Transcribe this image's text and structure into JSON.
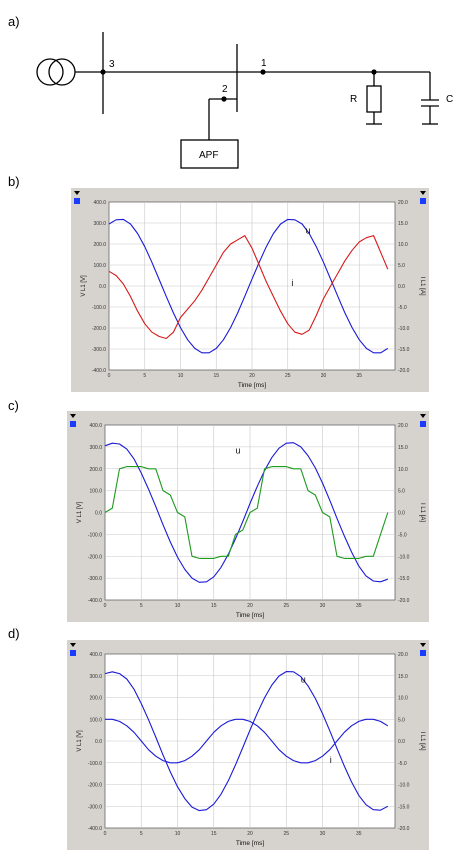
{
  "panels": {
    "a": "a)",
    "b": "b)",
    "c": "c)",
    "d": "d)"
  },
  "schematic": {
    "node_3": "3",
    "node_2": "2",
    "node_1": "1",
    "r_label": "R",
    "c_label": "C",
    "apf_label": "APF"
  },
  "colors": {
    "voltage": "#1a1ad6",
    "current_b": "#d61a1a",
    "current_c": "#1e9a1e",
    "current_d": "#1a1ad6",
    "plot_bg": "#ffffff",
    "frame_bg": "#d6d3ce",
    "marker": "#1a3cff"
  },
  "chart_data": [
    {
      "type": "line",
      "panel": "b",
      "xlabel": "Time [ms]",
      "ylabel_left": "V L1 [V]",
      "ylabel_right": "I L1 [A]",
      "xlim": [
        0,
        40
      ],
      "ylim_left": [
        -400,
        400
      ],
      "ylim_right": [
        -20,
        20
      ],
      "x_ticks": [
        "0",
        "5",
        "10",
        "15",
        "20",
        "25",
        "30",
        "35"
      ],
      "y_left_ticks": [
        "400.0",
        "300.0",
        "200.0",
        "100.0",
        "0.0",
        "-100.0",
        "-200.0",
        "-300.0",
        "-400.0"
      ],
      "y_right_ticks": [
        "20.0",
        "15.0",
        "10.0",
        "5.0",
        "0.0",
        "-5.0",
        "-10.0",
        "-15.0",
        "-20.0"
      ],
      "series": [
        {
          "name": "u",
          "axis": "left",
          "x": [
            0,
            1,
            2,
            3,
            4,
            5,
            6,
            7,
            8,
            9,
            10,
            11,
            12,
            13,
            14,
            15,
            16,
            17,
            18,
            19,
            20,
            21,
            22,
            23,
            24,
            25,
            26,
            27,
            28,
            29,
            30,
            31,
            32,
            33,
            34,
            35,
            36,
            37,
            38,
            39
          ],
          "values": [
            295,
            315,
            317,
            295,
            250,
            187,
            113,
            33,
            -49,
            -128,
            -198,
            -256,
            -297,
            -318,
            -318,
            -297,
            -256,
            -198,
            -128,
            -49,
            33,
            113,
            187,
            250,
            295,
            317,
            315,
            295,
            250,
            187,
            113,
            33,
            -49,
            -128,
            -198,
            -256,
            -297,
            -318,
            -318,
            -297
          ]
        },
        {
          "name": "i",
          "axis": "right",
          "x": [
            0,
            1,
            2,
            3,
            4,
            5,
            6,
            7,
            8,
            9,
            10,
            11,
            12,
            13,
            14,
            15,
            16,
            17,
            18,
            19,
            20,
            21,
            22,
            23,
            24,
            25,
            26,
            27,
            28,
            29,
            30,
            31,
            32,
            33,
            34,
            35,
            36,
            37,
            38,
            39
          ],
          "values": [
            3.5,
            2.5,
            0.5,
            -2.5,
            -6,
            -9,
            -11,
            -12,
            -12.5,
            -11,
            -7.5,
            -5.5,
            -3.5,
            -1,
            2,
            5,
            8,
            10,
            11,
            12,
            9,
            5,
            1,
            -2.5,
            -6,
            -9,
            -11,
            -11.5,
            -10.5,
            -7,
            -3,
            0,
            3,
            6,
            8.5,
            10.5,
            11.5,
            12,
            8,
            4
          ]
        }
      ],
      "annotations": [
        "u",
        "i"
      ]
    },
    {
      "type": "line",
      "panel": "c",
      "xlabel": "Time [ms]",
      "ylabel_left": "V L1 [V]",
      "ylabel_right": "I L1 [A]",
      "xlim": [
        0,
        40
      ],
      "ylim_left": [
        -400,
        400
      ],
      "ylim_right": [
        -20,
        20
      ],
      "x_ticks": [
        "0",
        "5",
        "10",
        "15",
        "20",
        "25",
        "30",
        "35"
      ],
      "y_left_ticks": [
        "400.0",
        "300.0",
        "200.0",
        "100.0",
        "0.0",
        "-100.0",
        "-200.0",
        "-300.0",
        "-400.0"
      ],
      "y_right_ticks": [
        "20.0",
        "15.0",
        "10.0",
        "5.0",
        "0.0",
        "-5.0",
        "-10.0",
        "-15.0",
        "-20.0"
      ],
      "series": [
        {
          "name": "u",
          "axis": "left",
          "x": [
            0,
            1,
            2,
            3,
            4,
            5,
            6,
            7,
            8,
            9,
            10,
            11,
            12,
            13,
            14,
            15,
            16,
            17,
            18,
            19,
            20,
            21,
            22,
            23,
            24,
            25,
            26,
            27,
            28,
            29,
            30,
            31,
            32,
            33,
            34,
            35,
            36,
            37,
            38,
            39
          ],
          "values": [
            305,
            317,
            313,
            290,
            245,
            180,
            107,
            27,
            -56,
            -135,
            -204,
            -260,
            -300,
            -319,
            -317,
            -294,
            -251,
            -191,
            -120,
            -41,
            41,
            120,
            191,
            251,
            294,
            317,
            319,
            300,
            260,
            204,
            135,
            56,
            -27,
            -107,
            -180,
            -245,
            -290,
            -313,
            -317,
            -305
          ]
        },
        {
          "name": "i",
          "axis": "right",
          "x": [
            0,
            1,
            2,
            3,
            4,
            5,
            6,
            7,
            8,
            9,
            10,
            11,
            12,
            13,
            14,
            15,
            16,
            17,
            18,
            19,
            20,
            21,
            22,
            23,
            24,
            25,
            26,
            27,
            28,
            29,
            30,
            31,
            32,
            33,
            34,
            35,
            36,
            37,
            38,
            39
          ],
          "values": [
            0,
            1,
            10,
            10.5,
            10.5,
            10.5,
            10,
            10,
            5,
            4,
            0,
            -1,
            -10,
            -10.5,
            -10.5,
            -10.5,
            -10,
            -10,
            -5,
            -4,
            0,
            1,
            10,
            10.5,
            10.5,
            10.5,
            10,
            10,
            5,
            4,
            0,
            -1,
            -10,
            -10.5,
            -10.5,
            -10.5,
            -10,
            -10,
            -5,
            0
          ]
        }
      ],
      "annotations": [
        "u",
        "i"
      ]
    },
    {
      "type": "line",
      "panel": "d",
      "xlabel": "Time [ms]",
      "ylabel_left": "V L1 [V]",
      "ylabel_right": "I L1 [A]",
      "xlim": [
        0,
        40
      ],
      "ylim_left": [
        -400,
        400
      ],
      "ylim_right": [
        -20,
        20
      ],
      "x_ticks": [
        "0",
        "5",
        "10",
        "15",
        "20",
        "25",
        "30",
        "35"
      ],
      "y_left_ticks": [
        "400.0",
        "300.0",
        "200.0",
        "100.0",
        "0.0",
        "-100.0",
        "-200.0",
        "-300.0",
        "-400.0"
      ],
      "y_right_ticks": [
        "20.0",
        "15.0",
        "10.0",
        "5.0",
        "0.0",
        "-5.0",
        "-10.0",
        "-15.0",
        "-20.0"
      ],
      "series": [
        {
          "name": "u",
          "axis": "left",
          "x": [
            0,
            1,
            2,
            3,
            4,
            5,
            6,
            7,
            8,
            9,
            10,
            11,
            12,
            13,
            14,
            15,
            16,
            17,
            18,
            19,
            20,
            21,
            22,
            23,
            24,
            25,
            26,
            27,
            28,
            29,
            30,
            31,
            32,
            33,
            34,
            35,
            36,
            37,
            38,
            39
          ],
          "values": [
            310,
            318,
            310,
            285,
            238,
            172,
            98,
            18,
            -64,
            -142,
            -210,
            -265,
            -304,
            -320,
            -316,
            -290,
            -245,
            -183,
            -110,
            -30,
            50,
            128,
            198,
            257,
            299,
            319,
            318,
            296,
            254,
            196,
            126,
            47,
            -35,
            -115,
            -188,
            -250,
            -293,
            -316,
            -318,
            -300
          ]
        },
        {
          "name": "i",
          "axis": "right",
          "x": [
            0,
            1,
            2,
            3,
            4,
            5,
            6,
            7,
            8,
            9,
            10,
            11,
            12,
            13,
            14,
            15,
            16,
            17,
            18,
            19,
            20,
            21,
            22,
            23,
            24,
            25,
            26,
            27,
            28,
            29,
            30,
            31,
            32,
            33,
            34,
            35,
            36,
            37,
            38,
            39
          ],
          "values": [
            5,
            5,
            4.5,
            3.5,
            2,
            0,
            -2,
            -3.5,
            -4.5,
            -5,
            -5,
            -4.5,
            -3.5,
            -2,
            0,
            2,
            3.5,
            4.5,
            5,
            5,
            4.5,
            3.5,
            2,
            0,
            -2,
            -3.5,
            -4.5,
            -5,
            -5,
            -4.5,
            -3.5,
            -2,
            0,
            2,
            3.5,
            4.5,
            5,
            5,
            4.5,
            3.5
          ]
        }
      ],
      "annotations": [
        "u",
        "i"
      ]
    }
  ]
}
